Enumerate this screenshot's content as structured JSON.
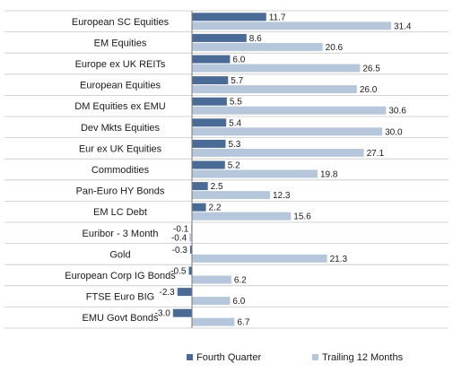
{
  "chart_data": {
    "type": "bar",
    "orientation": "horizontal",
    "categories": [
      "European SC Equities",
      "EM Equities",
      "Europe ex UK REITs",
      "European Equities",
      "DM Equities ex EMU",
      "Dev Mkts Equities",
      "Eur ex UK Equities",
      "Commodities",
      "Pan-Euro HY Bonds",
      "EM LC Debt",
      "Euribor - 3 Month",
      "Gold",
      "European Corp IG Bonds",
      "FTSE Euro BIG",
      "EMU Govt Bonds"
    ],
    "series": [
      {
        "name": "Fourth Quarter",
        "color": "#4a6b96",
        "values": [
          11.7,
          8.6,
          6.0,
          5.7,
          5.5,
          5.4,
          5.3,
          5.2,
          2.5,
          2.2,
          -0.1,
          -0.3,
          -0.5,
          -2.3,
          -3.0
        ],
        "labels": [
          "11.7",
          "8.6",
          "6.0",
          "5.7",
          "5.5",
          "5.4",
          "5.3",
          "5.2",
          "2.5",
          "2.2",
          "-0.1",
          "-0.3",
          "-0.5",
          "-2.3",
          "-3.0"
        ]
      },
      {
        "name": "Trailing 12 Months",
        "color": "#b7c7db",
        "values": [
          31.4,
          20.6,
          26.5,
          26.0,
          30.6,
          30.0,
          27.1,
          19.8,
          12.3,
          15.6,
          -0.4,
          21.3,
          6.2,
          6.0,
          6.7
        ],
        "labels": [
          "31.4",
          "20.6",
          "26.5",
          "26.0",
          "30.6",
          "30.0",
          "27.1",
          "19.8",
          "12.3",
          "15.6",
          "-0.4",
          "21.3",
          "6.2",
          "6.0",
          "6.7"
        ]
      }
    ],
    "title": "",
    "xlabel": "",
    "ylabel": "",
    "legend_position": "bottom",
    "grid": "row separators"
  }
}
